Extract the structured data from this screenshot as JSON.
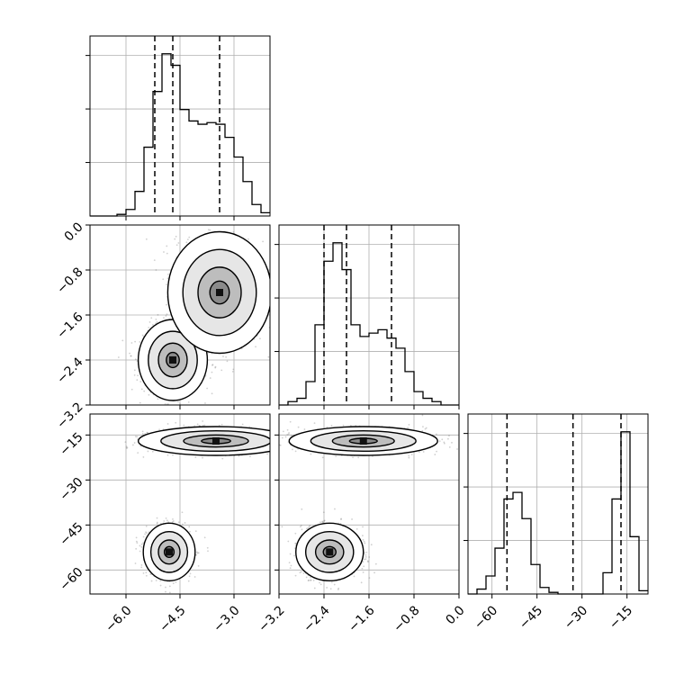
{
  "chart_data": {
    "type": "corner",
    "colors": {
      "line": "#000000",
      "grid": "#b0b0b0",
      "scatter": "#555555"
    },
    "grid": true,
    "parameters": [
      {
        "range": [
          -7.0,
          -2.0
        ],
        "ticks": [
          -6.0,
          -4.5,
          -3.0
        ],
        "tick_labels": [
          "−6.0",
          "−4.5",
          "−3.0"
        ]
      },
      {
        "range": [
          -3.2,
          0.0
        ],
        "ticks": [
          -3.2,
          -2.4,
          -1.6,
          -0.8,
          0.0
        ],
        "tick_labels": [
          "−3.2",
          "−2.4",
          "−1.6",
          "−0.8",
          "0.0"
        ]
      },
      {
        "range": [
          -68,
          -8
        ],
        "ticks": [
          -60,
          -45,
          -30,
          -15
        ],
        "tick_labels": [
          "−60",
          "−45",
          "−30",
          "−15"
        ]
      }
    ],
    "histograms": [
      {
        "param": 0,
        "bin_edges": [
          -7.0,
          -6.75,
          -6.5,
          -6.25,
          -6.0,
          -5.75,
          -5.5,
          -5.25,
          -5.0,
          -4.75,
          -4.5,
          -4.25,
          -4.0,
          -3.75,
          -3.5,
          -3.25,
          -3.0,
          -2.75,
          -2.5,
          -2.25,
          -2.0
        ],
        "counts": [
          0,
          0,
          0,
          0.01,
          0.04,
          0.15,
          0.42,
          0.76,
          0.99,
          0.92,
          0.65,
          0.58,
          0.56,
          0.57,
          0.56,
          0.48,
          0.36,
          0.21,
          0.07,
          0.02
        ],
        "quantiles": [
          -5.2,
          -4.7,
          -3.4
        ]
      },
      {
        "param": 1,
        "bin_edges": [
          -3.2,
          -3.04,
          -2.88,
          -2.72,
          -2.56,
          -2.4,
          -2.24,
          -2.08,
          -1.92,
          -1.76,
          -1.6,
          -1.44,
          -1.28,
          -1.12,
          -0.96,
          -0.8,
          -0.64,
          -0.48,
          -0.32,
          -0.16,
          0.0
        ],
        "counts": [
          0,
          0.02,
          0.04,
          0.14,
          0.48,
          0.86,
          0.97,
          0.81,
          0.48,
          0.41,
          0.43,
          0.45,
          0.4,
          0.34,
          0.2,
          0.08,
          0.04,
          0.02,
          0,
          0
        ],
        "quantiles": [
          -2.4,
          -2.0,
          -1.2
        ]
      },
      {
        "param": 2,
        "bin_edges": [
          -68,
          -65,
          -62,
          -59,
          -56,
          -53,
          -50,
          -47,
          -44,
          -41,
          -38,
          -35,
          -32,
          -29,
          -26,
          -23,
          -20,
          -17,
          -14,
          -11,
          -8
        ],
        "counts": [
          0,
          0.03,
          0.11,
          0.28,
          0.58,
          0.62,
          0.46,
          0.18,
          0.04,
          0.01,
          0,
          0,
          0,
          0,
          0,
          0.13,
          0.58,
          0.99,
          0.35,
          0.02
        ],
        "quantiles": [
          -55,
          -33,
          -17
        ]
      }
    ],
    "pairs": [
      {
        "x_param": 0,
        "y_param": 1,
        "modes": [
          {
            "mean": [
              -4.7,
              -2.4
            ],
            "sd": [
              0.4,
              0.3
            ]
          },
          {
            "mean": [
              -3.4,
              -1.2
            ],
            "sd": [
              0.6,
              0.45
            ]
          }
        ]
      },
      {
        "x_param": 0,
        "y_param": 2,
        "modes": [
          {
            "mean": [
              -3.5,
              -17
            ],
            "sd": [
              0.9,
              2.0
            ]
          },
          {
            "mean": [
              -4.8,
              -54
            ],
            "sd": [
              0.3,
              4.0
            ]
          }
        ]
      },
      {
        "x_param": 1,
        "y_param": 2,
        "modes": [
          {
            "mean": [
              -1.7,
              -17
            ],
            "sd": [
              0.55,
              2.0
            ]
          },
          {
            "mean": [
              -2.3,
              -54
            ],
            "sd": [
              0.25,
              4.0
            ]
          }
        ]
      }
    ]
  }
}
